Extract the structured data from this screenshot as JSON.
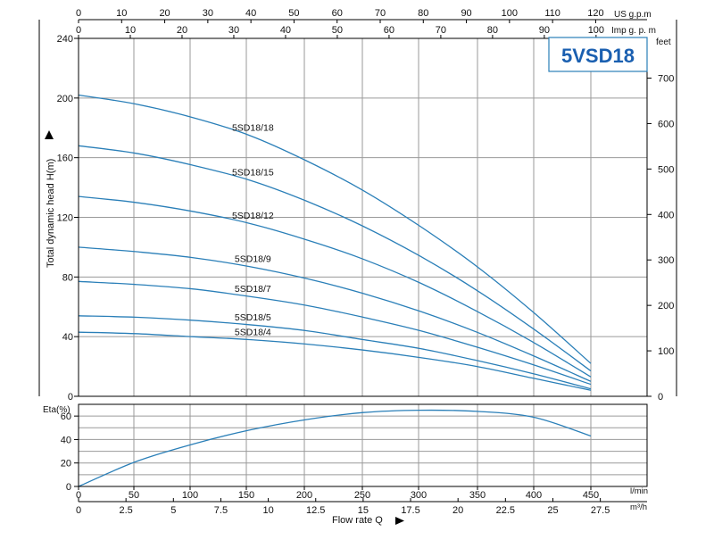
{
  "model_label": "5VSD18",
  "colors": {
    "curve": "#2a7fb8",
    "label_box_border": "#2a7fb8",
    "label_text": "#1a5fb0"
  },
  "units": {
    "us_gpm": "US g.p.m",
    "imp_gpm": "Imp g. p. m",
    "feet": "feet",
    "l_min": "l/min",
    "m3h": "m³/h"
  },
  "chart_data": [
    {
      "type": "line",
      "title": "",
      "xlabel": "Flow rate Q",
      "ylabel": "Total dynamic head H(m)",
      "x_unit": "l/min",
      "xlim": [
        0,
        500
      ],
      "ylim": [
        0,
        240
      ],
      "grid": true,
      "x_ticks": [
        0,
        50,
        100,
        150,
        200,
        250,
        300,
        350,
        400,
        450
      ],
      "y_ticks": [
        0,
        40,
        80,
        120,
        160,
        200,
        240
      ],
      "secondary_axes": {
        "top_us_gpm": {
          "label": "US g.p.m",
          "ticks": [
            0,
            10,
            20,
            30,
            40,
            50,
            60,
            70,
            80,
            90,
            100,
            110,
            120
          ]
        },
        "top_imp_gpm": {
          "label": "Imp g. p. m",
          "ticks": [
            0,
            10,
            20,
            30,
            40,
            50,
            60,
            70,
            80,
            90,
            100
          ]
        },
        "right_feet": {
          "label": "feet",
          "ticks": [
            0,
            100,
            200,
            300,
            400,
            500,
            600,
            700
          ]
        },
        "bottom_m3h": {
          "label": "m³/h",
          "ticks": [
            "0",
            "2.5",
            "5",
            "7.5",
            "10",
            "12.5",
            "15",
            "17.5",
            "20",
            "22.5",
            "25",
            "27.5"
          ]
        }
      },
      "series": [
        {
          "name": "5SD18/18",
          "x": [
            0,
            50,
            100,
            150,
            200,
            250,
            300,
            350,
            400,
            450
          ],
          "y": [
            202,
            196,
            187,
            175,
            158,
            138,
            114,
            87,
            56,
            22
          ]
        },
        {
          "name": "5SD18/15",
          "x": [
            0,
            50,
            100,
            150,
            200,
            250,
            300,
            350,
            400,
            450
          ],
          "y": [
            168,
            163,
            155,
            145,
            131,
            114,
            94,
            71,
            45,
            17
          ]
        },
        {
          "name": "5SD18/12",
          "x": [
            0,
            50,
            100,
            150,
            200,
            250,
            300,
            350,
            400,
            450
          ],
          "y": [
            134,
            130,
            124,
            116,
            105,
            92,
            76,
            57,
            36,
            13
          ]
        },
        {
          "name": "5SD18/9",
          "x": [
            0,
            50,
            100,
            150,
            200,
            250,
            300,
            350,
            400,
            450
          ],
          "y": [
            100,
            97,
            93,
            87,
            79,
            69,
            57,
            43,
            27,
            10
          ]
        },
        {
          "name": "5SD18/7",
          "x": [
            0,
            50,
            100,
            150,
            200,
            250,
            300,
            350,
            400,
            450
          ],
          "y": [
            77,
            75,
            72,
            67,
            61,
            53,
            44,
            33,
            21,
            8
          ]
        },
        {
          "name": "5SD18/5",
          "x": [
            0,
            50,
            100,
            150,
            200,
            250,
            300,
            350,
            400,
            450
          ],
          "y": [
            54,
            53,
            51,
            48,
            44,
            38,
            32,
            24,
            15,
            5
          ]
        },
        {
          "name": "5SD18/4",
          "x": [
            0,
            50,
            100,
            150,
            200,
            250,
            300,
            350,
            400,
            450
          ],
          "y": [
            43,
            42,
            40,
            38,
            35,
            31,
            26,
            20,
            12,
            4
          ]
        }
      ]
    },
    {
      "type": "line",
      "title": "",
      "xlabel": "Flow rate Q",
      "ylabel": "Eta(%)",
      "xlim": [
        0,
        500
      ],
      "ylim": [
        0,
        70
      ],
      "grid": true,
      "x_ticks": [
        0,
        50,
        100,
        150,
        200,
        250,
        300,
        350,
        400,
        450
      ],
      "y_ticks": [
        0,
        20,
        40,
        60
      ],
      "y_ticks_shown": [
        0,
        20,
        40,
        60
      ],
      "series": [
        {
          "name": "",
          "x": [
            0,
            50,
            100,
            150,
            200,
            250,
            300,
            350,
            400,
            450
          ],
          "y": [
            0,
            21,
            36,
            48,
            57,
            63,
            65,
            64,
            59,
            43
          ]
        }
      ]
    }
  ]
}
